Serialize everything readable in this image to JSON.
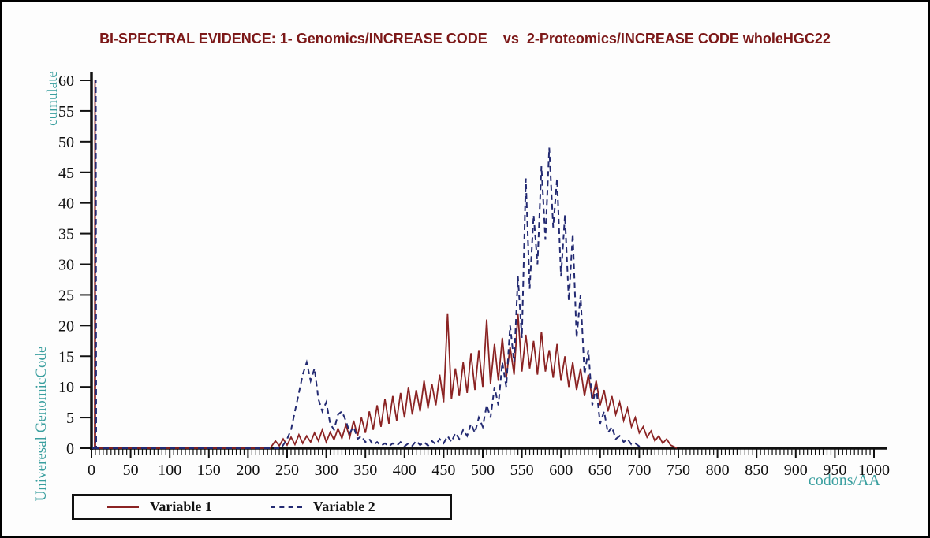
{
  "window": {
    "background": "#fdfdfd",
    "border_color": "#000000"
  },
  "title": {
    "text": "BI-SPECTRAL EVIDENCE: 1- Genomics/INCREASE CODE    vs  2-Proteomics/INCREASE CODE wholeHGC22",
    "color": "#7c1818"
  },
  "axis_labels": {
    "y_top": "cumulate",
    "y_bottom": "Univeresal GenomicCode",
    "x_right": "codons/AA",
    "color": "#3a9f9f"
  },
  "legend": {
    "items": [
      {
        "label": "Variable 1",
        "line_style": "solid",
        "color": "#8b2323"
      },
      {
        "label": "Variable 2",
        "line_style": "dashed",
        "color": "#232a72"
      }
    ]
  },
  "chart_data": {
    "type": "line",
    "title": "BI-SPECTRAL EVIDENCE: 1- Genomics/INCREASE CODE vs 2-Proteomics/INCREASE CODE wholeHGC22",
    "xlabel": "codons/AA",
    "ylabel": "cumulate / Univeresal GenomicCode",
    "xlim": [
      0,
      1000
    ],
    "ylim": [
      0,
      60
    ],
    "x_major_step": 50,
    "x_minor_step": 5,
    "y_major_step": 5,
    "grid": false,
    "legend_position": "bottom-left",
    "axis_color": "#111111",
    "tick_label_color": "#111111",
    "notes": "Both series share a full-height spike (value 60) at x≈5. Variable 1 (solid dark red) forms a broad noisy hump between x≈230 and x≈745 peaking near 22. Variable 2 (dashed navy) has a small peak ≈14 near x=275 and a tall noisy peak up to 49 near x=585, ending near x=700.",
    "series": [
      {
        "name": "Variable 1",
        "color": "#8b2323",
        "dash": "none",
        "points": [
          [
            0,
            0
          ],
          [
            4,
            0
          ],
          [
            4.5,
            60
          ],
          [
            5,
            0
          ],
          [
            228,
            0
          ],
          [
            230,
            0.3
          ],
          [
            235,
            1.2
          ],
          [
            240,
            0.4
          ],
          [
            245,
            1.5
          ],
          [
            250,
            0.5
          ],
          [
            255,
            1.8
          ],
          [
            260,
            0.6
          ],
          [
            265,
            2.2
          ],
          [
            270,
            0.8
          ],
          [
            275,
            2.0
          ],
          [
            280,
            1.0
          ],
          [
            285,
            2.5
          ],
          [
            290,
            1.2
          ],
          [
            295,
            3.0
          ],
          [
            300,
            1.0
          ],
          [
            305,
            2.6
          ],
          [
            310,
            1.4
          ],
          [
            315,
            3.2
          ],
          [
            320,
            1.6
          ],
          [
            325,
            3.8
          ],
          [
            330,
            1.8
          ],
          [
            335,
            4.5
          ],
          [
            340,
            2.0
          ],
          [
            345,
            5.0
          ],
          [
            350,
            2.5
          ],
          [
            355,
            6.0
          ],
          [
            360,
            3.0
          ],
          [
            365,
            7.0
          ],
          [
            370,
            3.5
          ],
          [
            375,
            8.0
          ],
          [
            380,
            4.0
          ],
          [
            385,
            8.5
          ],
          [
            390,
            4.5
          ],
          [
            395,
            9.0
          ],
          [
            400,
            5.0
          ],
          [
            405,
            10.0
          ],
          [
            410,
            5.5
          ],
          [
            415,
            9.5
          ],
          [
            420,
            6.0
          ],
          [
            425,
            11.0
          ],
          [
            430,
            6.5
          ],
          [
            435,
            10.5
          ],
          [
            440,
            7.0
          ],
          [
            445,
            12.0
          ],
          [
            450,
            7.5
          ],
          [
            455,
            22.0
          ],
          [
            460,
            8.0
          ],
          [
            465,
            13.0
          ],
          [
            470,
            8.5
          ],
          [
            475,
            14.0
          ],
          [
            480,
            9.0
          ],
          [
            485,
            15.5
          ],
          [
            490,
            9.5
          ],
          [
            495,
            16.0
          ],
          [
            500,
            10.0
          ],
          [
            505,
            21.0
          ],
          [
            510,
            10.5
          ],
          [
            515,
            17.0
          ],
          [
            520,
            11.0
          ],
          [
            525,
            18.0
          ],
          [
            530,
            11.5
          ],
          [
            535,
            16.5
          ],
          [
            540,
            12.0
          ],
          [
            545,
            22.0
          ],
          [
            550,
            12.5
          ],
          [
            555,
            18.5
          ],
          [
            560,
            13.0
          ],
          [
            565,
            17.5
          ],
          [
            570,
            12.0
          ],
          [
            575,
            19.0
          ],
          [
            580,
            12.5
          ],
          [
            585,
            16.0
          ],
          [
            590,
            11.5
          ],
          [
            595,
            17.0
          ],
          [
            600,
            11.0
          ],
          [
            605,
            15.0
          ],
          [
            610,
            10.0
          ],
          [
            615,
            14.0
          ],
          [
            620,
            9.5
          ],
          [
            625,
            13.0
          ],
          [
            630,
            8.5
          ],
          [
            635,
            12.0
          ],
          [
            640,
            8.0
          ],
          [
            645,
            11.0
          ],
          [
            650,
            7.0
          ],
          [
            655,
            9.5
          ],
          [
            660,
            6.0
          ],
          [
            665,
            8.5
          ],
          [
            670,
            5.5
          ],
          [
            675,
            7.5
          ],
          [
            680,
            4.5
          ],
          [
            685,
            6.5
          ],
          [
            690,
            3.5
          ],
          [
            695,
            5.0
          ],
          [
            700,
            2.5
          ],
          [
            705,
            3.5
          ],
          [
            710,
            1.8
          ],
          [
            715,
            2.8
          ],
          [
            720,
            1.2
          ],
          [
            725,
            2.0
          ],
          [
            730,
            0.8
          ],
          [
            735,
            1.5
          ],
          [
            740,
            0.5
          ],
          [
            745,
            0.2
          ],
          [
            748,
            0
          ]
        ]
      },
      {
        "name": "Variable 2",
        "color": "#232a72",
        "dash": "7 5",
        "points": [
          [
            0,
            0
          ],
          [
            5,
            0
          ],
          [
            5.5,
            60
          ],
          [
            6,
            0
          ],
          [
            242,
            0
          ],
          [
            245,
            0.5
          ],
          [
            250,
            1.5
          ],
          [
            255,
            3.0
          ],
          [
            260,
            6.0
          ],
          [
            265,
            9.0
          ],
          [
            270,
            12.0
          ],
          [
            275,
            14.0
          ],
          [
            280,
            11.0
          ],
          [
            285,
            13.0
          ],
          [
            290,
            8.0
          ],
          [
            295,
            6.0
          ],
          [
            300,
            7.5
          ],
          [
            305,
            4.0
          ],
          [
            310,
            3.0
          ],
          [
            315,
            5.5
          ],
          [
            320,
            6.0
          ],
          [
            325,
            4.5
          ],
          [
            330,
            2.5
          ],
          [
            335,
            3.5
          ],
          [
            340,
            1.5
          ],
          [
            345,
            2.0
          ],
          [
            350,
            1.0
          ],
          [
            355,
            1.5
          ],
          [
            360,
            0.5
          ],
          [
            365,
            1.0
          ],
          [
            370,
            0.4
          ],
          [
            375,
            0.8
          ],
          [
            380,
            0.3
          ],
          [
            385,
            0.8
          ],
          [
            390,
            0.4
          ],
          [
            395,
            1.0
          ],
          [
            400,
            0.3
          ],
          [
            405,
            0.8
          ],
          [
            410,
            0.4
          ],
          [
            415,
            1.2
          ],
          [
            420,
            0.5
          ],
          [
            425,
            1.0
          ],
          [
            430,
            0.4
          ],
          [
            435,
            1.2
          ],
          [
            440,
            0.6
          ],
          [
            445,
            1.5
          ],
          [
            450,
            0.8
          ],
          [
            455,
            2.0
          ],
          [
            460,
            1.0
          ],
          [
            465,
            2.5
          ],
          [
            470,
            1.5
          ],
          [
            475,
            3.0
          ],
          [
            480,
            2.0
          ],
          [
            485,
            4.0
          ],
          [
            490,
            2.5
          ],
          [
            495,
            5.0
          ],
          [
            500,
            3.5
          ],
          [
            505,
            7.0
          ],
          [
            510,
            5.0
          ],
          [
            515,
            10.0
          ],
          [
            520,
            7.0
          ],
          [
            525,
            14.0
          ],
          [
            530,
            10.0
          ],
          [
            535,
            20.0
          ],
          [
            540,
            14.0
          ],
          [
            545,
            28.0
          ],
          [
            550,
            18.0
          ],
          [
            555,
            44.0
          ],
          [
            560,
            26.0
          ],
          [
            565,
            38.0
          ],
          [
            570,
            30.0
          ],
          [
            575,
            46.0
          ],
          [
            580,
            34.0
          ],
          [
            585,
            49.0
          ],
          [
            590,
            36.0
          ],
          [
            595,
            44.0
          ],
          [
            600,
            28.0
          ],
          [
            605,
            38.0
          ],
          [
            610,
            24.0
          ],
          [
            615,
            35.0
          ],
          [
            620,
            18.0
          ],
          [
            625,
            25.0
          ],
          [
            630,
            12.0
          ],
          [
            635,
            16.0
          ],
          [
            640,
            7.0
          ],
          [
            645,
            10.0
          ],
          [
            650,
            4.0
          ],
          [
            655,
            6.0
          ],
          [
            660,
            2.5
          ],
          [
            665,
            3.5
          ],
          [
            670,
            1.5
          ],
          [
            675,
            2.0
          ],
          [
            680,
            1.0
          ],
          [
            685,
            1.5
          ],
          [
            690,
            0.6
          ],
          [
            695,
            0.8
          ],
          [
            700,
            0.3
          ],
          [
            703,
            0
          ]
        ]
      }
    ]
  }
}
